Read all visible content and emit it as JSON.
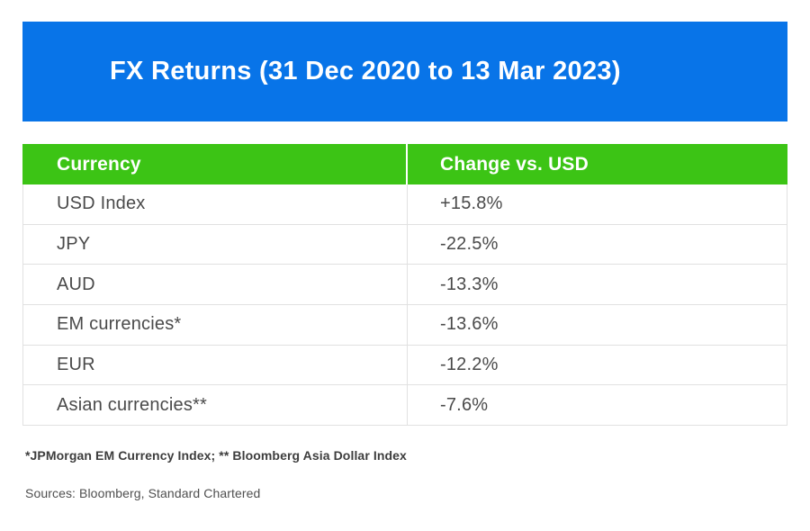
{
  "banner": {
    "title": "FX Returns (31 Dec 2020 to 13 Mar 2023)",
    "bg_color": "#0874E8",
    "text_color": "#ffffff"
  },
  "chart_data": {
    "type": "table",
    "title": "FX Returns (31 Dec 2020 to 13 Mar 2023)",
    "columns": [
      "Currency",
      "Change vs. USD"
    ],
    "rows": [
      [
        "USD Index",
        "+15.8%"
      ],
      [
        "JPY",
        "-22.5%"
      ],
      [
        "AUD",
        "-13.3%"
      ],
      [
        "EM currencies*",
        "-13.6%"
      ],
      [
        "EUR",
        "-12.2%"
      ],
      [
        "Asian currencies**",
        "-7.6%"
      ]
    ],
    "values_pct": {
      "USD Index": 15.8,
      "JPY": -22.5,
      "AUD": -13.3,
      "EM currencies*": -13.6,
      "EUR": -12.2,
      "Asian currencies**": -7.6
    },
    "header_bg_color": "#3CC415",
    "header_text_color": "#ffffff",
    "body_text_color": "#4A4A4A",
    "border_color": "#e1e1e1"
  },
  "footnotes": {
    "definitions": "*JPMorgan EM Currency Index; ** Bloomberg Asia Dollar Index",
    "sources": "Sources: Bloomberg, Standard Chartered"
  }
}
